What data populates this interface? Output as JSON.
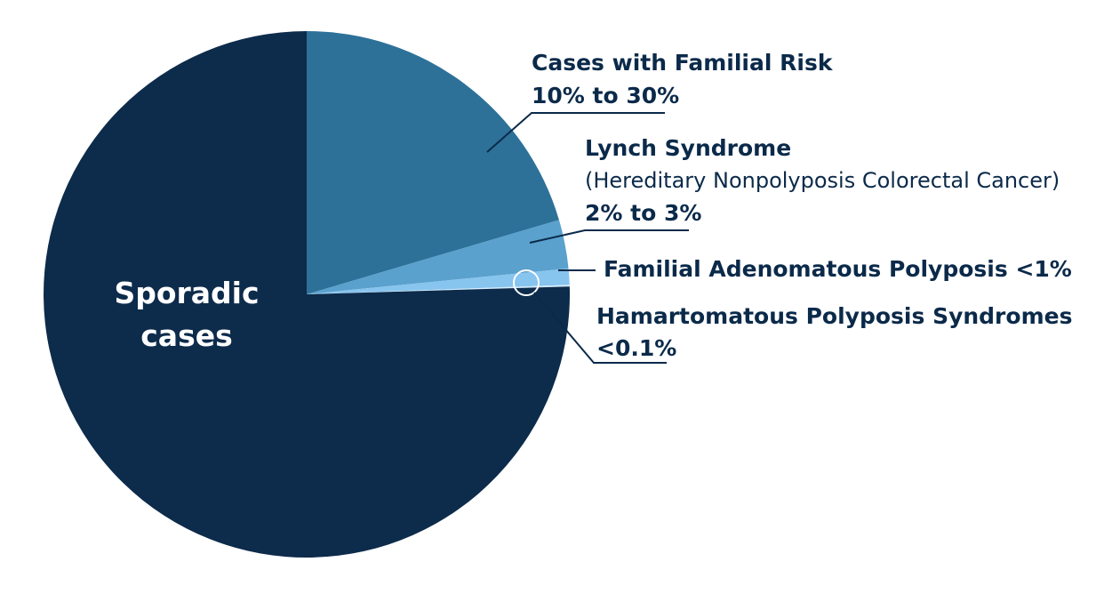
{
  "chart_data": {
    "type": "pie",
    "title": "",
    "slices": [
      {
        "label": "Sporadic cases",
        "value": "",
        "share": 75.7,
        "color": "#0d2b4b"
      },
      {
        "label": "Cases with Familial Risk",
        "value": "10% to 30%",
        "share": 20.5,
        "color": "#2d7199"
      },
      {
        "label": "Lynch Syndrome",
        "sublabel": "(Hereditary Nonpolyposis Colorectal Cancer)",
        "value": "2% to 3%",
        "share": 3.0,
        "color": "#5aa1cd"
      },
      {
        "label": "Familial Adenomatous Polyposis <1%",
        "value": "",
        "share": 1.0,
        "color": "#87c4ee"
      },
      {
        "label": "Hamartomatous Polyposis Syndromes",
        "value": "<0.1%",
        "share": 0.1,
        "color": "#d3ecfb"
      }
    ],
    "inside_label": [
      "Sporadic",
      "cases"
    ]
  }
}
